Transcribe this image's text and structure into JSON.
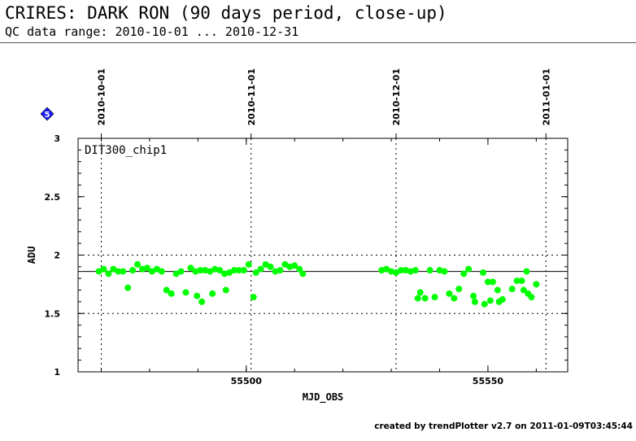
{
  "header": {
    "title": "CRIRES: DARK RON (90 days period, close-up)",
    "subtitle": "QC data range: 2010-10-01 ... 2010-12-31"
  },
  "footer": {
    "text": "created by trendPlotter v2.7 on 2011-01-09T03:45:44"
  },
  "marker": {
    "label": "5",
    "color": "#1a1aff"
  },
  "chart_data": {
    "type": "scatter",
    "panel_label": "DIT300_chip1",
    "xlabel": "MJD_OBS",
    "ylabel": "ADU",
    "xlim": [
      55465.2,
      55566.5
    ],
    "ylim": [
      1,
      3
    ],
    "x_ticks": [
      55500,
      55550
    ],
    "y_ticks": [
      1,
      1.5,
      2,
      2.5,
      3
    ],
    "y_tick_labels": [
      "1",
      "1.5",
      "2",
      "2.5",
      "3"
    ],
    "date_markers": [
      {
        "label": "2010-10-01",
        "mjd": 55470
      },
      {
        "label": "2010-11-01",
        "mjd": 55501
      },
      {
        "label": "2010-12-01",
        "mjd": 55531
      },
      {
        "label": "2011-01-01",
        "mjd": 55562
      }
    ],
    "reference_lines": {
      "mean": 1.86,
      "limits": [
        1.5,
        2.0
      ]
    },
    "point_color": "#00ff00",
    "series": [
      {
        "points": [
          [
            55469.5,
            1.86
          ],
          [
            55470.5,
            1.88
          ],
          [
            55471.5,
            1.84
          ],
          [
            55472.5,
            1.88
          ],
          [
            55473.5,
            1.86
          ],
          [
            55474.5,
            1.86
          ],
          [
            55475.5,
            1.72
          ],
          [
            55476.5,
            1.87
          ],
          [
            55477.5,
            1.92
          ],
          [
            55478.5,
            1.88
          ],
          [
            55479.5,
            1.89
          ],
          [
            55480.5,
            1.86
          ],
          [
            55481.5,
            1.88
          ],
          [
            55482.5,
            1.86
          ],
          [
            55483.5,
            1.7
          ],
          [
            55484.5,
            1.67
          ],
          [
            55485.5,
            1.84
          ],
          [
            55486.5,
            1.86
          ],
          [
            55487.5,
            1.68
          ],
          [
            55488.5,
            1.89
          ],
          [
            55489.5,
            1.86
          ],
          [
            55489.8,
            1.65
          ],
          [
            55490.5,
            1.87
          ],
          [
            55490.8,
            1.6
          ],
          [
            55491.5,
            1.87
          ],
          [
            55492.5,
            1.86
          ],
          [
            55493.0,
            1.67
          ],
          [
            55493.5,
            1.88
          ],
          [
            55494.5,
            1.87
          ],
          [
            55495.5,
            1.84
          ],
          [
            55495.8,
            1.7
          ],
          [
            55496.5,
            1.85
          ],
          [
            55497.5,
            1.87
          ],
          [
            55498.5,
            1.87
          ],
          [
            55499.5,
            1.87
          ],
          [
            55500.5,
            1.92
          ],
          [
            55501.5,
            1.64
          ],
          [
            55502.0,
            1.85
          ],
          [
            55503.0,
            1.88
          ],
          [
            55504.0,
            1.92
          ],
          [
            55505.0,
            1.9
          ],
          [
            55506.0,
            1.86
          ],
          [
            55507.0,
            1.87
          ],
          [
            55508.0,
            1.92
          ],
          [
            55509.0,
            1.9
          ],
          [
            55510.0,
            1.91
          ],
          [
            55511.0,
            1.88
          ],
          [
            55511.7,
            1.84
          ],
          [
            55528.0,
            1.87
          ],
          [
            55529.0,
            1.88
          ],
          [
            55530.0,
            1.86
          ],
          [
            55531.0,
            1.85
          ],
          [
            55532.0,
            1.87
          ],
          [
            55533.0,
            1.87
          ],
          [
            55534.0,
            1.86
          ],
          [
            55535.0,
            1.87
          ],
          [
            55535.5,
            1.63
          ],
          [
            55536.0,
            1.68
          ],
          [
            55537.0,
            1.63
          ],
          [
            55538.0,
            1.87
          ],
          [
            55539.0,
            1.64
          ],
          [
            55540.0,
            1.87
          ],
          [
            55541.0,
            1.86
          ],
          [
            55542.0,
            1.67
          ],
          [
            55543.0,
            1.63
          ],
          [
            55544.0,
            1.71
          ],
          [
            55545.0,
            1.84
          ],
          [
            55546.0,
            1.88
          ],
          [
            55547.0,
            1.65
          ],
          [
            55547.3,
            1.6
          ],
          [
            55549.0,
            1.85
          ],
          [
            55549.3,
            1.58
          ],
          [
            55550.0,
            1.77
          ],
          [
            55550.5,
            1.61
          ],
          [
            55551.0,
            1.77
          ],
          [
            55552.0,
            1.7
          ],
          [
            55552.3,
            1.6
          ],
          [
            55553.0,
            1.62
          ],
          [
            55555.0,
            1.71
          ],
          [
            55556.0,
            1.78
          ],
          [
            55557.0,
            1.78
          ],
          [
            55557.4,
            1.7
          ],
          [
            55558.0,
            1.86
          ],
          [
            55558.3,
            1.67
          ],
          [
            55559.0,
            1.64
          ],
          [
            55560.0,
            1.75
          ]
        ]
      }
    ]
  }
}
